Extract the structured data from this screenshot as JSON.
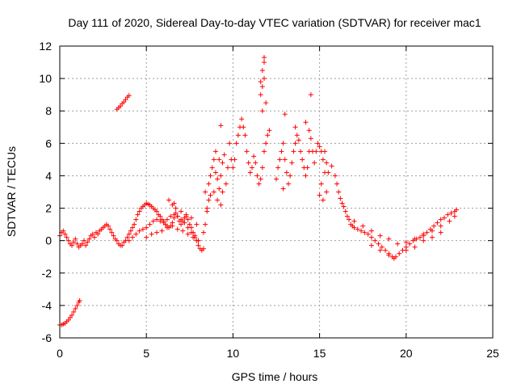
{
  "chart_data": {
    "type": "scatter",
    "title": "Day 111 of 2020, Sidereal Day-to-day VTEC variation (SDTVAR) for receiver mac1",
    "xlabel": "GPS time / hours",
    "ylabel": "SDTVAR / TECUs",
    "xlim": [
      0,
      25
    ],
    "ylim": [
      -6,
      12
    ],
    "xticks": [
      "0",
      "5",
      "10",
      "15",
      "20",
      "25"
    ],
    "yticks": [
      "-6",
      "-4",
      "-2",
      "0",
      "2",
      "4",
      "6",
      "8",
      "10",
      "12"
    ],
    "grid": true,
    "marker": "+",
    "marker_color": "#ff0000",
    "series": [
      {
        "name": "mac1",
        "points": [
          [
            0.0,
            -5.2
          ],
          [
            0.1,
            -5.2
          ],
          [
            0.2,
            -5.15
          ],
          [
            0.3,
            -5.1
          ],
          [
            0.4,
            -5.0
          ],
          [
            0.5,
            -4.9
          ],
          [
            0.6,
            -4.75
          ],
          [
            0.7,
            -4.6
          ],
          [
            0.8,
            -4.4
          ],
          [
            0.9,
            -4.2
          ],
          [
            1.0,
            -4.0
          ],
          [
            1.1,
            -3.8
          ],
          [
            1.15,
            -3.7
          ],
          [
            3.3,
            8.1
          ],
          [
            3.4,
            8.2
          ],
          [
            3.5,
            8.3
          ],
          [
            3.6,
            8.45
          ],
          [
            3.7,
            8.55
          ],
          [
            3.8,
            8.7
          ],
          [
            3.9,
            8.85
          ],
          [
            4.0,
            8.95
          ],
          [
            0.0,
            0.3
          ],
          [
            0.1,
            0.5
          ],
          [
            0.2,
            0.6
          ],
          [
            0.3,
            0.4
          ],
          [
            0.4,
            0.2
          ],
          [
            0.5,
            0.0
          ],
          [
            0.6,
            -0.2
          ],
          [
            0.7,
            -0.3
          ],
          [
            0.8,
            -0.1
          ],
          [
            0.9,
            0.1
          ],
          [
            1.0,
            -0.2
          ],
          [
            1.1,
            -0.4
          ],
          [
            1.2,
            -0.3
          ],
          [
            1.3,
            -0.2
          ],
          [
            1.4,
            0.0
          ],
          [
            1.5,
            -0.3
          ],
          [
            1.6,
            -0.1
          ],
          [
            1.7,
            0.1
          ],
          [
            1.8,
            0.3
          ],
          [
            1.9,
            0.4
          ],
          [
            2.0,
            0.2
          ],
          [
            2.1,
            0.5
          ],
          [
            2.2,
            0.4
          ],
          [
            2.3,
            0.6
          ],
          [
            2.4,
            0.7
          ],
          [
            2.5,
            0.8
          ],
          [
            2.6,
            0.9
          ],
          [
            2.7,
            1.0
          ],
          [
            2.8,
            0.9
          ],
          [
            2.9,
            0.7
          ],
          [
            3.0,
            0.5
          ],
          [
            3.1,
            0.3
          ],
          [
            3.2,
            0.1
          ],
          [
            3.3,
            0.0
          ],
          [
            3.4,
            -0.2
          ],
          [
            3.5,
            -0.3
          ],
          [
            3.6,
            -0.3
          ],
          [
            3.7,
            -0.1
          ],
          [
            3.8,
            0.0
          ],
          [
            3.9,
            0.2
          ],
          [
            4.0,
            0.4
          ],
          [
            4.1,
            0.6
          ],
          [
            4.2,
            0.8
          ],
          [
            4.3,
            1.0
          ],
          [
            4.4,
            1.3
          ],
          [
            4.5,
            1.6
          ],
          [
            4.6,
            1.8
          ],
          [
            4.7,
            2.0
          ],
          [
            4.8,
            2.1
          ],
          [
            4.9,
            2.2
          ],
          [
            5.0,
            2.3
          ],
          [
            5.1,
            2.25
          ],
          [
            5.2,
            2.2
          ],
          [
            5.3,
            2.1
          ],
          [
            5.4,
            2.0
          ],
          [
            5.5,
            1.9
          ],
          [
            5.6,
            1.8
          ],
          [
            5.7,
            1.6
          ],
          [
            5.8,
            1.5
          ],
          [
            5.9,
            1.3
          ],
          [
            6.0,
            1.2
          ],
          [
            6.1,
            1.0
          ],
          [
            6.2,
            0.9
          ],
          [
            6.3,
            0.8
          ],
          [
            6.4,
            0.9
          ],
          [
            6.5,
            1.1
          ],
          [
            6.6,
            1.4
          ],
          [
            6.7,
            1.7
          ],
          [
            6.8,
            1.5
          ],
          [
            6.9,
            1.2
          ],
          [
            7.0,
            1.0
          ],
          [
            7.1,
            1.2
          ],
          [
            7.2,
            1.4
          ],
          [
            7.3,
            1.5
          ],
          [
            7.4,
            1.3
          ],
          [
            7.5,
            1.0
          ],
          [
            7.6,
            0.8
          ],
          [
            7.7,
            0.5
          ],
          [
            7.8,
            0.2
          ],
          [
            7.9,
            0.0
          ],
          [
            8.0,
            -0.3
          ],
          [
            8.1,
            -0.5
          ],
          [
            8.2,
            -0.6
          ],
          [
            8.3,
            -0.5
          ],
          [
            4.0,
            0.0
          ],
          [
            4.2,
            0.2
          ],
          [
            4.4,
            0.4
          ],
          [
            4.6,
            0.6
          ],
          [
            4.8,
            0.7
          ],
          [
            5.0,
            0.8
          ],
          [
            5.2,
            1.0
          ],
          [
            5.4,
            1.2
          ],
          [
            5.6,
            1.3
          ],
          [
            5.8,
            1.2
          ],
          [
            6.0,
            1.1
          ],
          [
            6.2,
            1.3
          ],
          [
            6.4,
            1.5
          ],
          [
            6.6,
            1.6
          ],
          [
            6.8,
            1.5
          ],
          [
            7.0,
            1.3
          ],
          [
            7.2,
            1.1
          ],
          [
            7.4,
            0.8
          ],
          [
            7.6,
            0.5
          ],
          [
            7.8,
            0.3
          ],
          [
            8.0,
            0.0
          ],
          [
            5.0,
            0.2
          ],
          [
            5.3,
            0.4
          ],
          [
            5.6,
            0.5
          ],
          [
            5.9,
            0.6
          ],
          [
            6.2,
            0.8
          ],
          [
            6.5,
            0.9
          ],
          [
            6.8,
            0.7
          ],
          [
            7.1,
            0.6
          ],
          [
            7.4,
            0.4
          ],
          [
            7.7,
            0.2
          ],
          [
            8.0,
            0.0
          ],
          [
            6.3,
            2.5
          ],
          [
            6.5,
            2.2
          ],
          [
            6.7,
            2.0
          ],
          [
            6.6,
            2.3
          ],
          [
            7.0,
            1.8
          ],
          [
            7.3,
            1.6
          ],
          [
            7.6,
            1.4
          ],
          [
            7.9,
            1.0
          ],
          [
            8.3,
            0.5
          ],
          [
            8.4,
            1.0
          ],
          [
            8.5,
            1.8
          ],
          [
            8.6,
            2.5
          ],
          [
            8.4,
            3.0
          ],
          [
            8.6,
            3.5
          ],
          [
            8.7,
            4.0
          ],
          [
            8.8,
            4.5
          ],
          [
            8.9,
            5.0
          ],
          [
            9.0,
            4.2
          ],
          [
            9.1,
            3.8
          ],
          [
            9.2,
            3.2
          ],
          [
            9.3,
            4.0
          ],
          [
            9.4,
            4.8
          ],
          [
            9.5,
            5.3
          ],
          [
            9.2,
            5.0
          ],
          [
            9.0,
            5.5
          ],
          [
            8.9,
            3.0
          ],
          [
            8.5,
            2.0
          ],
          [
            8.7,
            2.8
          ],
          [
            9.1,
            2.5
          ],
          [
            9.3,
            2.2
          ],
          [
            9.4,
            3.0
          ],
          [
            9.6,
            3.5
          ],
          [
            9.7,
            4.5
          ],
          [
            9.8,
            6.0
          ],
          [
            9.9,
            5.0
          ],
          [
            10.0,
            4.5
          ],
          [
            10.1,
            5.0
          ],
          [
            10.2,
            6.0
          ],
          [
            10.3,
            6.5
          ],
          [
            10.4,
            7.0
          ],
          [
            10.5,
            7.5
          ],
          [
            10.6,
            7.0
          ],
          [
            10.7,
            6.5
          ],
          [
            10.8,
            5.5
          ],
          [
            10.9,
            4.8
          ],
          [
            11.0,
            4.2
          ],
          [
            11.1,
            4.5
          ],
          [
            11.2,
            5.2
          ],
          [
            11.3,
            4.8
          ],
          [
            11.4,
            4.0
          ],
          [
            11.5,
            3.5
          ],
          [
            11.6,
            3.8
          ],
          [
            11.7,
            4.5
          ],
          [
            11.8,
            5.5
          ],
          [
            11.9,
            6.0
          ],
          [
            12.0,
            6.5
          ],
          [
            12.1,
            6.8
          ],
          [
            11.6,
            9.0
          ],
          [
            11.7,
            9.5
          ],
          [
            11.8,
            10.0
          ],
          [
            11.7,
            10.5
          ],
          [
            11.8,
            11.0
          ],
          [
            11.8,
            11.3
          ],
          [
            11.6,
            9.8
          ],
          [
            11.9,
            8.5
          ],
          [
            11.7,
            8.0
          ],
          [
            9.3,
            7.1
          ],
          [
            12.5,
            3.8
          ],
          [
            12.6,
            4.5
          ],
          [
            12.7,
            5.0
          ],
          [
            12.8,
            5.5
          ],
          [
            12.9,
            6.0
          ],
          [
            13.0,
            5.0
          ],
          [
            13.1,
            4.2
          ],
          [
            13.2,
            3.5
          ],
          [
            13.3,
            4.0
          ],
          [
            13.4,
            4.8
          ],
          [
            13.5,
            5.5
          ],
          [
            13.6,
            6.0
          ],
          [
            13.7,
            6.5
          ],
          [
            13.8,
            6.2
          ],
          [
            13.9,
            5.5
          ],
          [
            14.0,
            5.0
          ],
          [
            14.1,
            4.5
          ],
          [
            14.2,
            4.0
          ],
          [
            14.3,
            4.5
          ],
          [
            14.4,
            5.5
          ],
          [
            14.5,
            6.3
          ],
          [
            14.6,
            5.5
          ],
          [
            14.7,
            4.8
          ],
          [
            14.8,
            5.5
          ],
          [
            14.9,
            6.0
          ],
          [
            15.0,
            5.8
          ],
          [
            15.1,
            5.5
          ],
          [
            15.2,
            5.0
          ],
          [
            15.3,
            5.5
          ],
          [
            15.4,
            4.8
          ],
          [
            15.3,
            4.2
          ],
          [
            15.1,
            3.5
          ],
          [
            15.0,
            2.8
          ],
          [
            15.2,
            2.5
          ],
          [
            15.4,
            3.0
          ],
          [
            13.0,
            7.8
          ],
          [
            14.5,
            9.0
          ],
          [
            12.9,
            3.2
          ],
          [
            13.6,
            7.0
          ],
          [
            14.2,
            7.3
          ],
          [
            14.4,
            6.8
          ],
          [
            15.5,
            4.2
          ],
          [
            15.7,
            4.6
          ],
          [
            15.9,
            4.0
          ],
          [
            16.0,
            3.5
          ],
          [
            16.1,
            3.0
          ],
          [
            16.2,
            2.6
          ],
          [
            16.3,
            2.3
          ],
          [
            16.4,
            2.1
          ],
          [
            16.5,
            1.8
          ],
          [
            16.6,
            1.5
          ],
          [
            16.7,
            1.3
          ],
          [
            16.8,
            1.0
          ],
          [
            16.9,
            0.9
          ],
          [
            17.0,
            0.8
          ],
          [
            17.2,
            0.7
          ],
          [
            17.4,
            0.6
          ],
          [
            17.6,
            0.5
          ],
          [
            17.8,
            0.4
          ],
          [
            18.0,
            0.2
          ],
          [
            18.2,
            0.0
          ],
          [
            18.4,
            -0.2
          ],
          [
            18.6,
            -0.4
          ],
          [
            18.8,
            -0.6
          ],
          [
            19.0,
            -0.8
          ],
          [
            19.2,
            -1.0
          ],
          [
            19.3,
            -1.1
          ],
          [
            19.4,
            -1.0
          ],
          [
            19.6,
            -0.8
          ],
          [
            19.8,
            -0.6
          ],
          [
            20.0,
            -0.4
          ],
          [
            20.2,
            -0.2
          ],
          [
            20.4,
            0.0
          ],
          [
            20.6,
            0.1
          ],
          [
            20.8,
            0.2
          ],
          [
            21.0,
            0.4
          ],
          [
            21.2,
            0.5
          ],
          [
            21.4,
            0.7
          ],
          [
            21.6,
            0.9
          ],
          [
            21.8,
            1.1
          ],
          [
            22.0,
            1.3
          ],
          [
            22.2,
            1.4
          ],
          [
            22.4,
            1.6
          ],
          [
            22.6,
            1.7
          ],
          [
            22.8,
            1.8
          ],
          [
            22.9,
            1.9
          ],
          [
            17.0,
            1.2
          ],
          [
            17.5,
            0.9
          ],
          [
            18.0,
            0.6
          ],
          [
            18.5,
            0.3
          ],
          [
            19.0,
            0.1
          ],
          [
            19.5,
            -0.2
          ],
          [
            20.0,
            -0.1
          ],
          [
            20.5,
            0.1
          ],
          [
            21.0,
            0.3
          ],
          [
            21.5,
            0.6
          ],
          [
            22.0,
            0.9
          ],
          [
            22.5,
            1.2
          ],
          [
            22.8,
            1.5
          ],
          [
            18.0,
            -0.3
          ],
          [
            18.5,
            -0.6
          ],
          [
            19.0,
            -0.9
          ],
          [
            20.0,
            -0.6
          ],
          [
            20.5,
            -0.4
          ],
          [
            21.0,
            0.0
          ],
          [
            21.5,
            0.2
          ],
          [
            22.0,
            0.5
          ]
        ]
      }
    ]
  }
}
